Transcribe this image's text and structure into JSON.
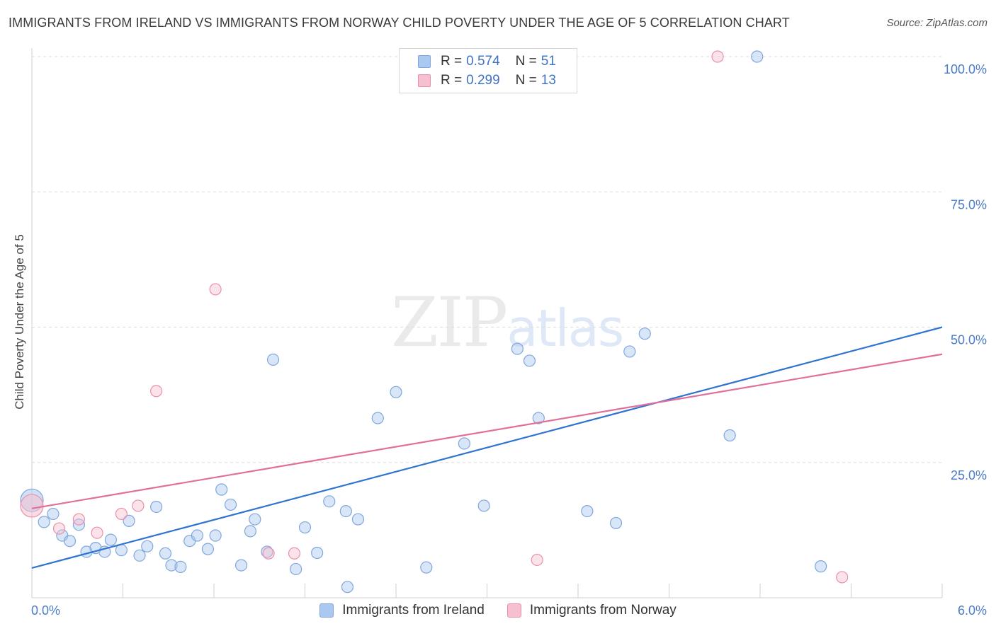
{
  "title": "IMMIGRANTS FROM IRELAND VS IMMIGRANTS FROM NORWAY CHILD POVERTY UNDER THE AGE OF 5 CORRELATION CHART",
  "source": "Source: ZipAtlas.com",
  "watermark": {
    "zip": "ZIP",
    "atlas": "atlas"
  },
  "legend": {
    "rows": [
      {
        "r_label": "R =",
        "r_value": "0.574",
        "n_label": "N =",
        "n_value": "51",
        "color": "#aac8f0",
        "border": "#7fa7dd"
      },
      {
        "r_label": "R =",
        "r_value": "0.299",
        "n_label": "N =",
        "n_value": "13",
        "color": "#f7c0d0",
        "border": "#ea8fab"
      }
    ]
  },
  "bottom_legend": {
    "ireland": "Immigrants from Ireland",
    "norway": "Immigrants from Norway"
  },
  "chart_data": {
    "type": "scatter",
    "title": "IMMIGRANTS FROM IRELAND VS IMMIGRANTS FROM NORWAY CHILD POVERTY UNDER THE AGE OF 5 CORRELATION CHART",
    "xlabel": "",
    "ylabel": "Child Poverty Under the Age of 5",
    "xlim": [
      0,
      6
    ],
    "ylim": [
      0,
      100
    ],
    "x_tick_labels": [
      "0.0%",
      "6.0%"
    ],
    "y_ticks": [
      25,
      50,
      75,
      100
    ],
    "y_tick_labels": [
      "25.0%",
      "50.0%",
      "75.0%",
      "100.0%"
    ],
    "grid": true,
    "legend_position": "top-center",
    "series": [
      {
        "name": "Immigrants from Ireland",
        "color": "#7fa7dd",
        "fill": "#aac8f0",
        "line_color": "#2f74d0",
        "trend": {
          "x": [
            0,
            6
          ],
          "y": [
            5.5,
            50
          ]
        },
        "points": [
          {
            "x": 0.0,
            "y": 18.0,
            "big": true
          },
          {
            "x": 0.08,
            "y": 14.0
          },
          {
            "x": 0.14,
            "y": 15.5
          },
          {
            "x": 0.2,
            "y": 11.5
          },
          {
            "x": 0.25,
            "y": 10.5
          },
          {
            "x": 0.31,
            "y": 13.5
          },
          {
            "x": 0.36,
            "y": 8.5
          },
          {
            "x": 0.42,
            "y": 9.2
          },
          {
            "x": 0.48,
            "y": 8.5
          },
          {
            "x": 0.52,
            "y": 10.7
          },
          {
            "x": 0.59,
            "y": 8.8
          },
          {
            "x": 0.64,
            "y": 14.2
          },
          {
            "x": 0.71,
            "y": 7.8
          },
          {
            "x": 0.76,
            "y": 9.5
          },
          {
            "x": 0.82,
            "y": 16.8
          },
          {
            "x": 0.88,
            "y": 8.2
          },
          {
            "x": 0.92,
            "y": 6.0
          },
          {
            "x": 0.98,
            "y": 5.7
          },
          {
            "x": 1.04,
            "y": 10.5
          },
          {
            "x": 1.09,
            "y": 11.5
          },
          {
            "x": 1.16,
            "y": 9.0
          },
          {
            "x": 1.21,
            "y": 11.5
          },
          {
            "x": 1.25,
            "y": 20.0
          },
          {
            "x": 1.31,
            "y": 17.2
          },
          {
            "x": 1.38,
            "y": 6.0
          },
          {
            "x": 1.44,
            "y": 12.3
          },
          {
            "x": 1.47,
            "y": 14.5
          },
          {
            "x": 1.55,
            "y": 8.5
          },
          {
            "x": 1.59,
            "y": 44.0
          },
          {
            "x": 1.74,
            "y": 5.3
          },
          {
            "x": 1.8,
            "y": 13.0
          },
          {
            "x": 1.88,
            "y": 8.3
          },
          {
            "x": 1.96,
            "y": 17.8
          },
          {
            "x": 2.07,
            "y": 16.0
          },
          {
            "x": 2.08,
            "y": 2.0
          },
          {
            "x": 2.15,
            "y": 14.5
          },
          {
            "x": 2.28,
            "y": 33.2
          },
          {
            "x": 2.4,
            "y": 38.0
          },
          {
            "x": 2.6,
            "y": 5.6
          },
          {
            "x": 2.85,
            "y": 28.5
          },
          {
            "x": 2.98,
            "y": 17.0
          },
          {
            "x": 3.2,
            "y": 46.0
          },
          {
            "x": 3.28,
            "y": 43.8
          },
          {
            "x": 3.34,
            "y": 33.2
          },
          {
            "x": 3.66,
            "y": 16.0
          },
          {
            "x": 3.85,
            "y": 13.8
          },
          {
            "x": 3.94,
            "y": 45.5
          },
          {
            "x": 4.04,
            "y": 48.8
          },
          {
            "x": 4.6,
            "y": 30.0
          },
          {
            "x": 4.78,
            "y": 100.0
          },
          {
            "x": 5.2,
            "y": 5.8
          }
        ]
      },
      {
        "name": "Immigrants from Norway",
        "color": "#ea8fab",
        "fill": "#f7c0d0",
        "line_color": "#e0709a",
        "trend": {
          "x": [
            0,
            6
          ],
          "y": [
            16.5,
            45
          ]
        },
        "points": [
          {
            "x": 0.0,
            "y": 17.0,
            "big": true
          },
          {
            "x": 0.18,
            "y": 12.8
          },
          {
            "x": 0.31,
            "y": 14.5
          },
          {
            "x": 0.43,
            "y": 12.0
          },
          {
            "x": 0.59,
            "y": 15.5
          },
          {
            "x": 0.7,
            "y": 17.0
          },
          {
            "x": 0.82,
            "y": 38.2
          },
          {
            "x": 1.21,
            "y": 57.0
          },
          {
            "x": 1.56,
            "y": 8.2
          },
          {
            "x": 1.73,
            "y": 8.2
          },
          {
            "x": 3.33,
            "y": 7.0
          },
          {
            "x": 4.52,
            "y": 100.0
          },
          {
            "x": 5.34,
            "y": 3.8
          }
        ]
      }
    ]
  }
}
